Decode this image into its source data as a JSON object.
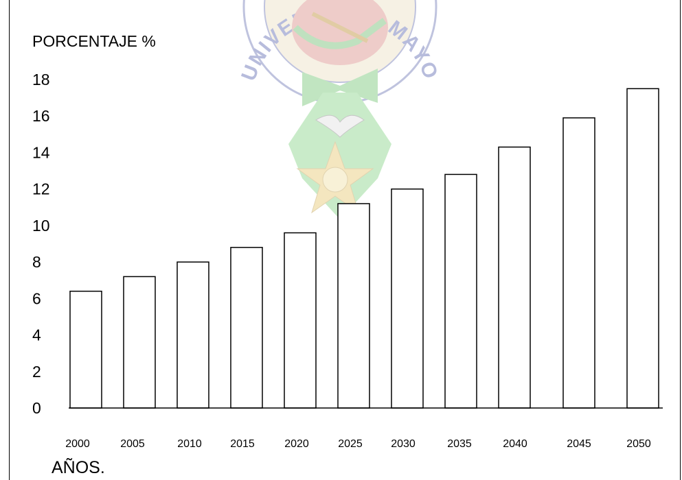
{
  "chart_data": {
    "type": "bar",
    "ylabel": "PORCENTAJE %",
    "xlabel": "AÑOS.",
    "categories": [
      "2000",
      "2005",
      "2010",
      "2015",
      "2020",
      "2025",
      "2030",
      "2035",
      "2040",
      "2045",
      "2050"
    ],
    "values": [
      6.4,
      7.2,
      8.0,
      8.8,
      9.6,
      11.2,
      12.0,
      12.8,
      14.3,
      15.9,
      17.5
    ],
    "ylim": [
      0,
      18
    ],
    "yticks": [
      "0",
      "2",
      "4",
      "6",
      "8",
      "10",
      "12",
      "14",
      "16",
      "18"
    ],
    "grid": false,
    "colors": {
      "bar_fill": "#ffffff",
      "bar_stroke": "#000000"
    }
  },
  "watermark": {
    "arc_text": "UNIVERSIDAD MAYOR DE SAN ANDRÉS",
    "colors": {
      "navy": "#9aa3cc",
      "green": "#9bd39b",
      "red": "#e4a9a4",
      "gold": "#e9cf8a"
    }
  }
}
